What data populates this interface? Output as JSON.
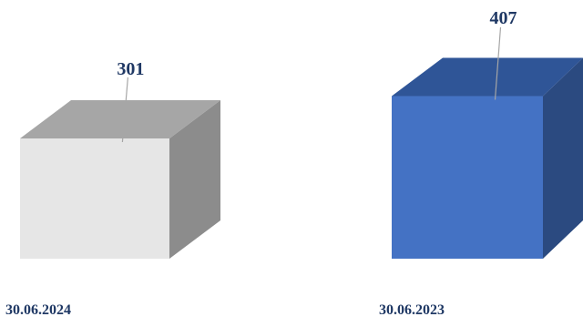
{
  "chart_data": {
    "type": "bar",
    "style": "3d-cube",
    "categories": [
      "30.06.2024",
      "30.06.2023"
    ],
    "values": [
      301,
      407
    ],
    "data_labels": [
      "301",
      "407"
    ],
    "title": "",
    "xlabel": "",
    "ylabel": "",
    "grid": false,
    "legend": "none",
    "colors": {
      "bar_2024_front": "#e6e6e6",
      "bar_2024_top": "#a6a6a6",
      "bar_2024_side": "#8c8c8c",
      "bar_2023_front": "#4472c4",
      "bar_2023_top": "#2f5597",
      "bar_2023_side": "#2b4a80",
      "label_text": "#1f3864",
      "leader_line": "#a6a6a6"
    }
  }
}
